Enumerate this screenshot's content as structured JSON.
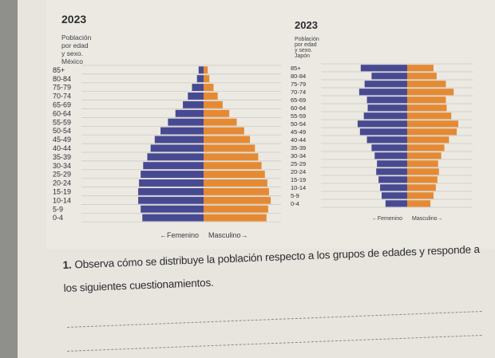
{
  "charts": {
    "mexico": {
      "year": "2023",
      "subtitle": "Población por edad y sexo. México"
    },
    "japan": {
      "year": "2023",
      "subtitle": "Población por edad y sexo. Japón"
    }
  },
  "question": {
    "number": "1.",
    "text": "Observa cómo se distribuye la población respecto a los grupos de edades y responde a los siguientes cuestionamientos."
  },
  "chart_data": [
    {
      "type": "bar",
      "orientation": "horizontal-pyramid",
      "title": "2023",
      "subtitle": "Población por edad y sexo. México",
      "categories": [
        "85+",
        "80-84",
        "75-79",
        "70-74",
        "65-69",
        "60-64",
        "55-59",
        "50-54",
        "45-49",
        "40-44",
        "35-39",
        "30-34",
        "25-29",
        "20-24",
        "15-19",
        "10-14",
        "5-9",
        "0-4"
      ],
      "series": [
        {
          "name": "Femenino",
          "color": "#474a92",
          "values": [
            0.6,
            0.8,
            1.4,
            1.9,
            2.5,
            3.4,
            4.3,
            5.2,
            5.9,
            6.4,
            6.8,
            7.3,
            7.6,
            7.8,
            7.9,
            7.9,
            7.6,
            7.4
          ]
        },
        {
          "name": "Masculino",
          "color": "#e58a34",
          "values": [
            0.5,
            0.7,
            1.2,
            1.7,
            2.3,
            3.1,
            4.0,
            4.9,
            5.6,
            6.2,
            6.6,
            7.0,
            7.4,
            7.7,
            7.9,
            8.1,
            7.8,
            7.6
          ]
        }
      ],
      "legend": [
        "←Femenino",
        "Masculino→"
      ],
      "grid": true
    },
    {
      "type": "bar",
      "orientation": "horizontal-pyramid",
      "title": "2023",
      "subtitle": "Población por edad y sexo. Japón",
      "categories": [
        "85+",
        "80-84",
        "75-79",
        "70-74",
        "65-69",
        "60-64",
        "55-59",
        "50-54",
        "45-49",
        "40-44",
        "35-39",
        "30-34",
        "25-29",
        "20-24",
        "15-19",
        "10-14",
        "5-9",
        "0-4"
      ],
      "series": [
        {
          "name": "Femenino",
          "color": "#474a92",
          "values": [
            6.0,
            4.6,
            5.5,
            6.2,
            5.2,
            5.1,
            5.6,
            6.4,
            6.1,
            5.2,
            4.6,
            4.2,
            3.9,
            4.0,
            3.7,
            3.5,
            3.3,
            2.8
          ]
        },
        {
          "name": "Masculino",
          "color": "#e58a34",
          "values": [
            3.4,
            3.8,
            5.0,
            6.0,
            5.0,
            5.1,
            5.7,
            6.6,
            6.4,
            5.4,
            4.8,
            4.4,
            4.0,
            4.1,
            3.9,
            3.7,
            3.4,
            3.0
          ]
        }
      ],
      "legend": [
        "←Femenino",
        "Masculino→"
      ],
      "grid": true
    }
  ]
}
